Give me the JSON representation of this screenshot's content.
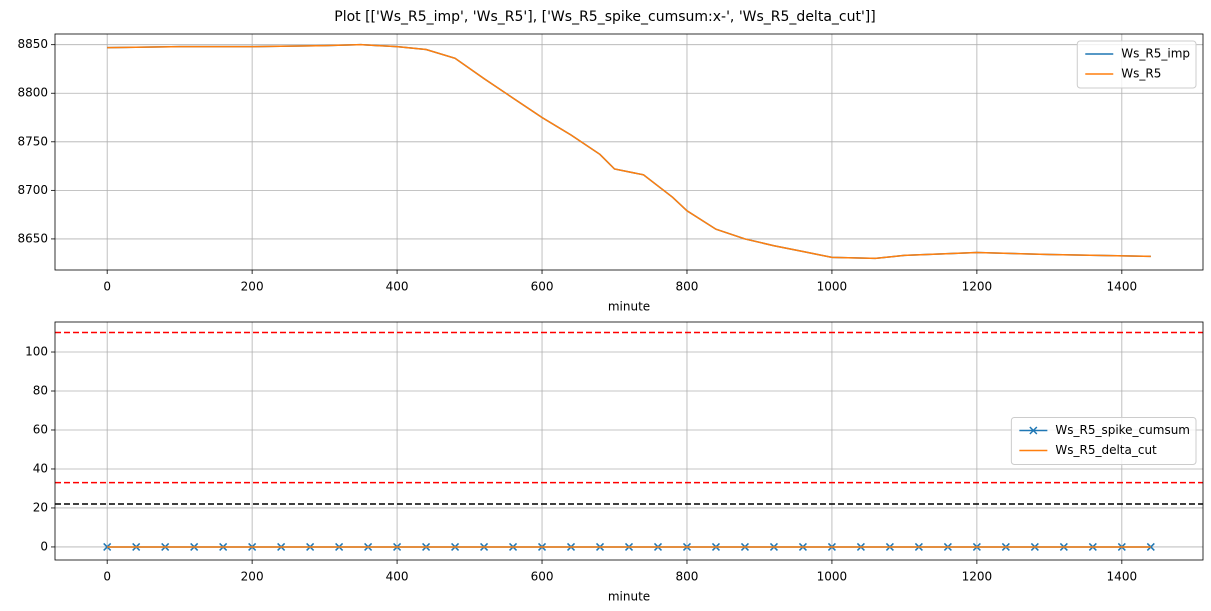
{
  "title": "Plot [['Ws_R5_imp', 'Ws_R5'], ['Ws_R5_spike_cumsum:x-', 'Ws_R5_delta_cut']]",
  "chart_data": [
    {
      "type": "line",
      "xlabel": "minute",
      "grid": true,
      "legend": "upper right",
      "x": [
        0,
        100,
        200,
        300,
        350,
        400,
        440,
        480,
        520,
        560,
        600,
        640,
        680,
        700,
        740,
        780,
        800,
        840,
        880,
        920,
        960,
        1000,
        1060,
        1100,
        1200,
        1300,
        1440
      ],
      "xlim": [
        -72,
        1512
      ],
      "xticks": [
        0,
        200,
        400,
        600,
        800,
        1000,
        1200,
        1400
      ],
      "ylim": [
        8618,
        8861
      ],
      "yticks": [
        8650,
        8700,
        8750,
        8800,
        8850
      ],
      "series": [
        {
          "name": "Ws_R5_imp",
          "color": "#1f77b4",
          "values": [
            8847,
            8848,
            8848,
            8849,
            8850,
            8848,
            8845,
            8836,
            8815,
            8795,
            8775,
            8757,
            8737,
            8722,
            8716,
            8693,
            8679,
            8660,
            8650,
            8643,
            8637,
            8631,
            8630,
            8633,
            8636,
            8634,
            8632
          ]
        },
        {
          "name": "Ws_R5",
          "color": "#ff7f0e",
          "values": [
            8847,
            8848,
            8848,
            8849,
            8850,
            8848,
            8845,
            8836,
            8815,
            8795,
            8775,
            8757,
            8737,
            8722,
            8716,
            8693,
            8679,
            8660,
            8650,
            8643,
            8637,
            8631,
            8630,
            8633,
            8636,
            8634,
            8632
          ]
        }
      ]
    },
    {
      "type": "line",
      "xlabel": "minute",
      "grid": true,
      "legend": "center right",
      "x": [
        0,
        40,
        80,
        120,
        160,
        200,
        240,
        280,
        320,
        360,
        400,
        440,
        480,
        520,
        560,
        600,
        640,
        680,
        720,
        760,
        800,
        840,
        880,
        920,
        960,
        1000,
        1040,
        1080,
        1120,
        1160,
        1200,
        1240,
        1280,
        1320,
        1360,
        1400,
        1440
      ],
      "xlim": [
        -72,
        1512
      ],
      "xticks": [
        0,
        200,
        400,
        600,
        800,
        1000,
        1200,
        1400
      ],
      "ylim": [
        -6.7,
        115.4
      ],
      "yticks": [
        0,
        20,
        40,
        60,
        80,
        100
      ],
      "hlines": [
        {
          "value": 110,
          "color": "#ff0000"
        },
        {
          "value": 33,
          "color": "#ff0000"
        },
        {
          "value": 22,
          "color": "#000000"
        }
      ],
      "series": [
        {
          "name": "Ws_R5_spike_cumsum",
          "color": "#1f77b4",
          "marker": "x",
          "values": [
            0,
            0,
            0,
            0,
            0,
            0,
            0,
            0,
            0,
            0,
            0,
            0,
            0,
            0,
            0,
            0,
            0,
            0,
            0,
            0,
            0,
            0,
            0,
            0,
            0,
            0,
            0,
            0,
            0,
            0,
            0,
            0,
            0,
            0,
            0,
            0,
            0
          ]
        },
        {
          "name": "Ws_R5_delta_cut",
          "color": "#ff7f0e",
          "values": [
            0,
            0,
            0,
            0,
            0,
            0,
            0,
            0,
            0,
            0,
            0,
            0,
            0,
            0,
            0,
            0,
            0,
            0,
            0,
            0,
            0,
            0,
            0,
            0,
            0,
            0,
            0,
            0,
            0,
            0,
            0,
            0,
            0,
            0,
            0,
            0,
            0
          ]
        }
      ]
    }
  ]
}
